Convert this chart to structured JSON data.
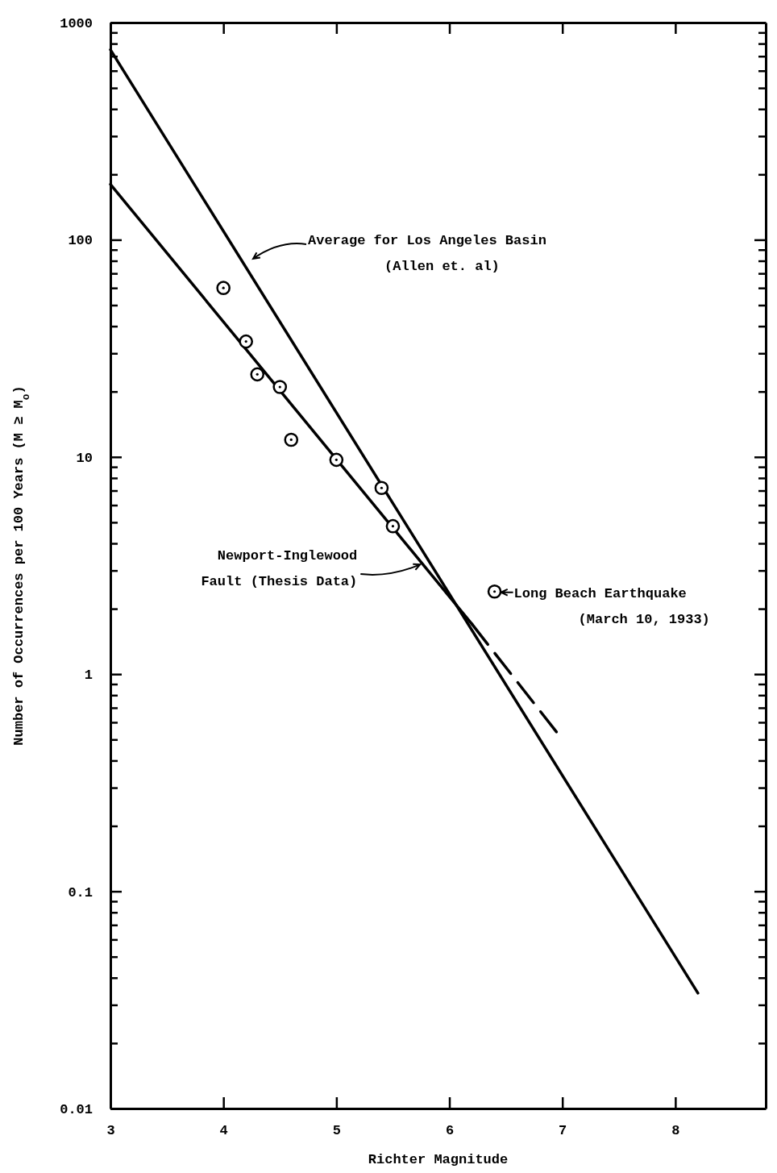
{
  "chart_data": {
    "type": "line",
    "xlabel": "Richter Magnitude",
    "ylabel": "Number of Occurrences per 100 Years (M ≥ M$_{o}$)",
    "xlim": [
      3,
      8.8
    ],
    "xticks": [
      3,
      4,
      5,
      6,
      7,
      8
    ],
    "ylim": [
      0.01,
      1000
    ],
    "log": true,
    "yticks": [
      0.01,
      {
        "value": 0.02,
        "label": null
      },
      {
        "value": 0.03,
        "label": null
      },
      {
        "value": 0.04,
        "label": null
      },
      {
        "value": 0.05,
        "label": null
      },
      {
        "value": 0.06,
        "label": null
      },
      {
        "value": 0.07,
        "label": null
      },
      {
        "value": 0.08,
        "label": null
      },
      {
        "value": 0.09,
        "label": null
      },
      0.1,
      {
        "value": 0.2,
        "label": null
      },
      {
        "value": 0.3,
        "label": null
      },
      {
        "value": 0.4,
        "label": null
      },
      {
        "value": 0.5,
        "label": null
      },
      {
        "value": 0.6,
        "label": null
      },
      {
        "value": 0.7,
        "label": null
      },
      {
        "value": 0.8,
        "label": null
      },
      {
        "value": 0.9,
        "label": null
      },
      1,
      {
        "value": 2,
        "label": null
      },
      {
        "value": 3,
        "label": null
      },
      {
        "value": 4,
        "label": null
      },
      {
        "value": 5,
        "label": null
      },
      {
        "value": 6,
        "label": null
      },
      {
        "value": 7,
        "label": null
      },
      {
        "value": 8,
        "label": null
      },
      {
        "value": 9,
        "label": null
      },
      10,
      {
        "value": 20,
        "label": null
      },
      {
        "value": 30,
        "label": null
      },
      {
        "value": 40,
        "label": null
      },
      {
        "value": 50,
        "label": null
      },
      {
        "value": 60,
        "label": null
      },
      {
        "value": 70,
        "label": null
      },
      {
        "value": 80,
        "label": null
      },
      {
        "value": 90,
        "label": null
      },
      100,
      {
        "value": 200,
        "label": null
      },
      {
        "value": 300,
        "label": null
      },
      {
        "value": 400,
        "label": null
      },
      {
        "value": 500,
        "label": null
      },
      {
        "value": 600,
        "label": null
      },
      {
        "value": 700,
        "label": null
      },
      {
        "value": 800,
        "label": null
      },
      {
        "value": 900,
        "label": null
      },
      1000
    ],
    "grid": false,
    "series": [
      {
        "color": "#000000",
        "x": [
          3,
          8.2
        ],
        "values": [
          750,
          0.034
        ],
        "line_style": "solid"
      },
      {
        "color": "#000000",
        "x": [
          3,
          6.2
        ],
        "values": [
          180,
          1.7
        ],
        "line_style": "solid"
      },
      {
        "color": "#000000",
        "x": [
          6.2,
          6.95
        ],
        "values": [
          1.7,
          0.54
        ],
        "line_style": "dashed"
      },
      {
        "type": "scatter",
        "color": "#000000",
        "marker": "circle",
        "x": [
          4.0,
          4.2,
          4.3,
          4.5,
          4.6,
          5.0,
          5.4,
          5.5,
          6.4
        ],
        "values": [
          60,
          34,
          24,
          21,
          12,
          9.7,
          7.2,
          4.8,
          2.4
        ]
      }
    ],
    "annotations": [
      "Average for Los Angeles Basin\n(Allen et. al)",
      {
        "text": "Newport-Inglewood\nFault (Thesis Data)",
        "x": 5.77,
        "y": 3.2
      },
      {
        "text": "Long Beach Earthquake\n(March 10, 1933)",
        "x": 6.4,
        "y": 2.4
      }
    ]
  }
}
